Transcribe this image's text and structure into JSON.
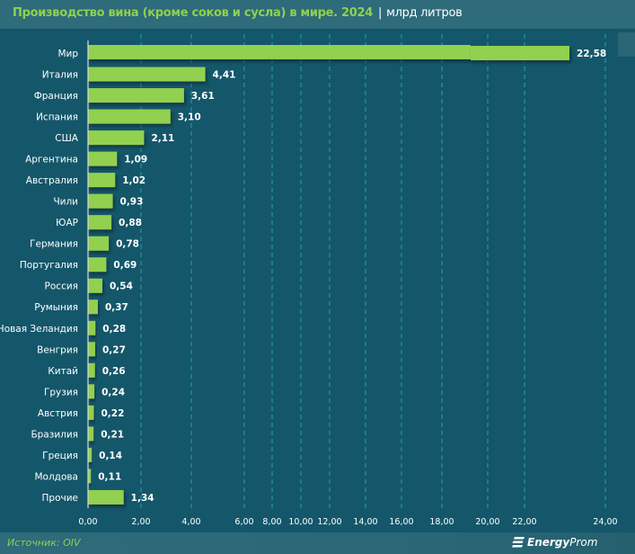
{
  "header": {
    "title": "Производство вина (кроме соков и сусла) в мире. 2024",
    "separator": "|",
    "unit": "млрд литров"
  },
  "footer": {
    "source": "Источник: OIV",
    "logo_bold": "Energy",
    "logo_light": "Prom",
    "logo_icon": "energyprom-logo-icon"
  },
  "colors": {
    "background": "#14576a",
    "header": "#2e6b7b",
    "bar": "#92d050",
    "accent_text": "#8fd14f",
    "gridline": "#2a9bb5"
  },
  "chart_data": {
    "type": "bar",
    "orientation": "horizontal",
    "title": "Производство вина (кроме соков и сусла) в мире. 2024",
    "unit": "млрд литров",
    "xlabel": "",
    "ylabel": "",
    "xlim": [
      0,
      24
    ],
    "axis_break": true,
    "grid": "vertical dashed",
    "legend": "none",
    "categories": [
      "Мир",
      "Италия",
      "Франция",
      "Испания",
      "США",
      "Аргентина",
      "Австралия",
      "Чили",
      "ЮАР",
      "Германия",
      "Португалия",
      "Россия",
      "Румыния",
      "Новая Зеландия",
      "Венгрия",
      "Китай",
      "Грузия",
      "Австрия",
      "Бразилия",
      "Греция",
      "Молдова",
      "Прочие"
    ],
    "values": [
      22.58,
      4.41,
      3.61,
      3.1,
      2.11,
      1.09,
      1.02,
      0.93,
      0.88,
      0.78,
      0.69,
      0.54,
      0.37,
      0.28,
      0.27,
      0.26,
      0.24,
      0.22,
      0.21,
      0.14,
      0.11,
      1.34
    ],
    "value_labels": [
      "22,58",
      "4,41",
      "3,61",
      "3,10",
      "2,11",
      "1,09",
      "1,02",
      "0,93",
      "0,88",
      "0,78",
      "0,69",
      "0,54",
      "0,37",
      "0,28",
      "0,27",
      "0,26",
      "0,24",
      "0,22",
      "0,21",
      "0,14",
      "0,11",
      "1,34"
    ],
    "x_ticks": [
      0,
      2,
      4,
      6,
      8,
      10,
      12,
      14,
      16,
      18,
      20,
      22,
      24
    ],
    "x_tick_labels": [
      "0,00",
      "2,00",
      "4,00",
      "6,00",
      "8,00",
      "10,00",
      "12,00",
      "14,00",
      "16,00",
      "18,00",
      "20,00",
      "22,00",
      "24,00"
    ]
  }
}
